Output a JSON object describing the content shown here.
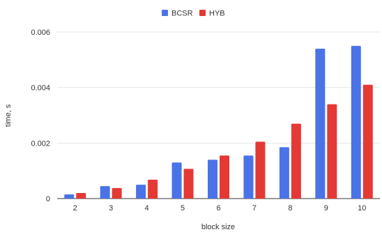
{
  "chart_data": {
    "type": "bar",
    "categories": [
      "2",
      "3",
      "4",
      "5",
      "6",
      "7",
      "8",
      "9",
      "10"
    ],
    "series": [
      {
        "name": "BCSR",
        "color": "#4a73e8",
        "values": [
          0.00015,
          0.00045,
          0.0005,
          0.0013,
          0.0014,
          0.00155,
          0.00185,
          0.0054,
          0.0055
        ]
      },
      {
        "name": "HYB",
        "color": "#e53935",
        "values": [
          0.0002,
          0.00038,
          0.00068,
          0.00107,
          0.00155,
          0.00205,
          0.0027,
          0.0034,
          0.0041
        ]
      }
    ],
    "ylim": [
      0,
      0.006
    ],
    "yticks": [
      "0",
      "0.002",
      "0.004",
      "0.006"
    ],
    "xlabel": "block size",
    "ylabel": "time, s",
    "legend_position": "top-center",
    "grid": true
  }
}
